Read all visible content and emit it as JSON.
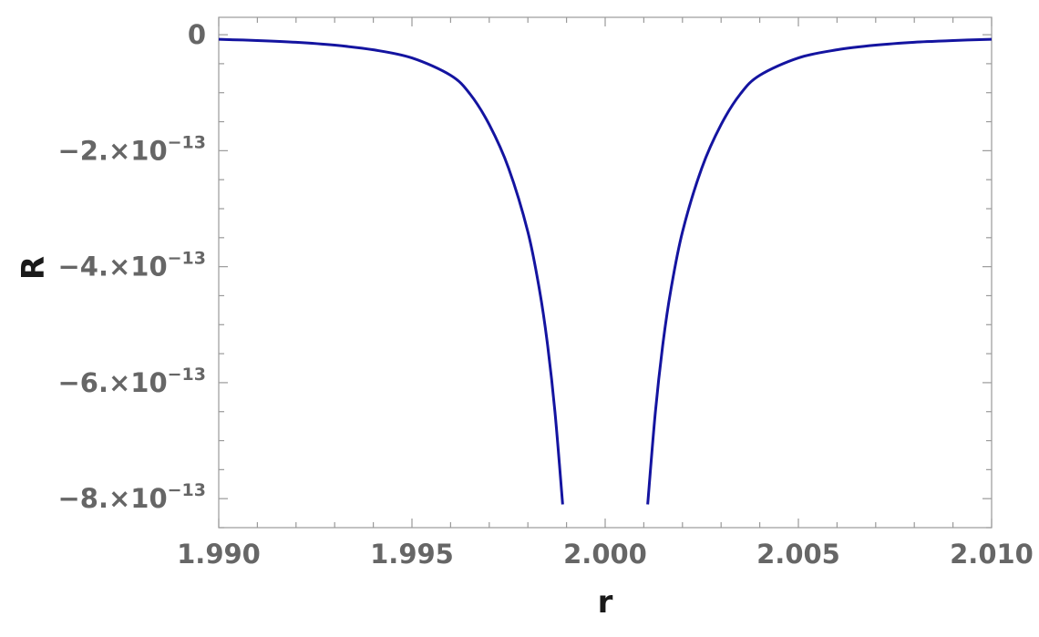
{
  "chart_data": {
    "type": "line",
    "title": "",
    "xlabel": "r",
    "ylabel": "R",
    "xlim": [
      1.99,
      2.01
    ],
    "ylim": [
      -8.5e-13,
      3e-14
    ],
    "grid": false,
    "legend": "none",
    "x_ticks": [
      {
        "value": 1.99,
        "label": "1.990"
      },
      {
        "value": 1.995,
        "label": "1.995"
      },
      {
        "value": 2.0,
        "label": "2.000"
      },
      {
        "value": 2.005,
        "label": "2.005"
      },
      {
        "value": 2.01,
        "label": "2.010"
      }
    ],
    "y_ticks": [
      {
        "value": 0,
        "label": "0",
        "mantissa": "",
        "exponent": ""
      },
      {
        "value": -2e-13,
        "label": "-2.×10^-13",
        "mantissa": "−2.×10",
        "exponent": "−13"
      },
      {
        "value": -4e-13,
        "label": "-4.×10^-13",
        "mantissa": "−4.×10",
        "exponent": "−13"
      },
      {
        "value": -6e-13,
        "label": "-6.×10^-13",
        "mantissa": "−6.×10",
        "exponent": "−13"
      },
      {
        "value": -8e-13,
        "label": "-8.×10^-13",
        "mantissa": "−8.×10",
        "exponent": "−13"
      }
    ],
    "series": [
      {
        "color": "#1414a0",
        "segments": [
          {
            "x": [
              1.99,
              1.991,
              1.992,
              1.993,
              1.994,
              1.995,
              1.996,
              1.9965,
              1.997,
              1.9975,
              1.998,
              1.9983,
              1.9985,
              1.9987,
              1.9989
            ],
            "y": [
              -8e-15,
              -1e-14,
              -1.3e-14,
              -1.8e-14,
              -2.6e-14,
              -4e-14,
              -7e-14,
              -1.02e-13,
              -1.55e-13,
              -2.3e-13,
              -3.4e-13,
              -4.4e-13,
              -5.3e-13,
              -6.5e-13,
              -8.1e-13
            ]
          },
          {
            "x": [
              2.0011,
              2.0013,
              2.0015,
              2.0017,
              2.002,
              2.0025,
              2.003,
              2.0035,
              2.004,
              2.005,
              2.006,
              2.007,
              2.008,
              2.009,
              2.01
            ],
            "y": [
              -8.1e-13,
              -6.5e-13,
              -5.3e-13,
              -4.4e-13,
              -3.4e-13,
              -2.3e-13,
              -1.55e-13,
              -1.02e-13,
              -7e-14,
              -4e-14,
              -2.6e-14,
              -1.8e-14,
              -1.3e-14,
              -1e-14,
              -8e-15
            ]
          }
        ]
      }
    ]
  }
}
